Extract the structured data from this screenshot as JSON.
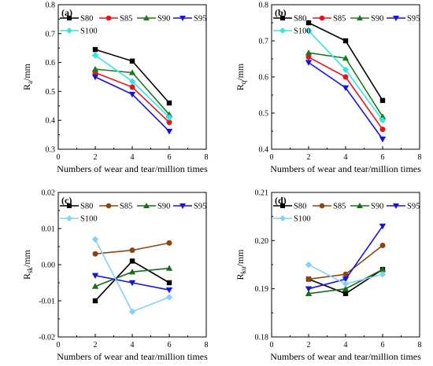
{
  "chart_data": [
    {
      "panel": "(a)",
      "type": "line",
      "x": [
        2,
        4,
        6
      ],
      "xlim": [
        0,
        8
      ],
      "ylim": [
        0.3,
        0.8
      ],
      "xticks": [
        "0",
        "2",
        "4",
        "6",
        "8"
      ],
      "yticks": [
        "0.3",
        "0.4",
        "0.5",
        "0.6",
        "0.7",
        "0.8"
      ],
      "ytick_values": [
        0.3,
        0.4,
        0.5,
        0.6,
        0.7,
        0.8
      ],
      "ylabel_main": "R",
      "ylabel_sub": "a",
      "ylabel_unit": "/mm",
      "xlabel": "Numbers of wear and tear/million times",
      "legend": "top",
      "series": [
        {
          "name": "S80",
          "color": "#000000",
          "marker": "square",
          "values": [
            0.645,
            0.605,
            0.46
          ]
        },
        {
          "name": "S85",
          "color": "#e8141c",
          "marker": "circle",
          "values": [
            0.565,
            0.515,
            0.393
          ]
        },
        {
          "name": "S90",
          "color": "#1c7a1c",
          "marker": "triangle-up",
          "values": [
            0.577,
            0.565,
            0.42
          ]
        },
        {
          "name": "S95",
          "color": "#1414e0",
          "marker": "triangle-down",
          "values": [
            0.55,
            0.49,
            0.362
          ]
        },
        {
          "name": "S100",
          "color": "#33e6e6",
          "marker": "diamond",
          "values": [
            0.625,
            0.535,
            0.41
          ]
        }
      ]
    },
    {
      "panel": "(b)",
      "type": "line",
      "x": [
        2,
        4,
        6
      ],
      "xlim": [
        0,
        8
      ],
      "ylim": [
        0.4,
        0.8
      ],
      "xticks": [
        "0",
        "2",
        "4",
        "6",
        "8"
      ],
      "yticks": [
        "0.4",
        "0.5",
        "0.6",
        "0.7",
        "0.8"
      ],
      "ytick_values": [
        0.4,
        0.5,
        0.6,
        0.7,
        0.8
      ],
      "ylabel_main": "R",
      "ylabel_sub": "q",
      "ylabel_unit": "/mm",
      "xlabel": "Numbers of wear and tear/million times",
      "legend": "top",
      "series": [
        {
          "name": "S80",
          "color": "#000000",
          "marker": "square",
          "values": [
            0.75,
            0.7,
            0.535
          ]
        },
        {
          "name": "S85",
          "color": "#e8141c",
          "marker": "circle",
          "values": [
            0.655,
            0.6,
            0.455
          ]
        },
        {
          "name": "S90",
          "color": "#1c7a1c",
          "marker": "triangle-up",
          "values": [
            0.667,
            0.652,
            0.49
          ]
        },
        {
          "name": "S95",
          "color": "#1414e0",
          "marker": "triangle-down",
          "values": [
            0.64,
            0.57,
            0.428
          ]
        },
        {
          "name": "S100",
          "color": "#33e6e6",
          "marker": "diamond",
          "values": [
            0.728,
            0.62,
            0.48
          ]
        }
      ]
    },
    {
      "panel": "(c)",
      "type": "line",
      "x": [
        2,
        4,
        6
      ],
      "xlim": [
        0,
        8
      ],
      "ylim": [
        -0.02,
        0.02
      ],
      "xticks": [
        "0",
        "2",
        "4",
        "6",
        "8"
      ],
      "yticks": [
        "-0.02",
        "-0.01",
        "0.00",
        "0.01",
        "0.02"
      ],
      "ytick_values": [
        -0.02,
        -0.01,
        0.0,
        0.01,
        0.02
      ],
      "ylabel_main": "R",
      "ylabel_sub": "sk",
      "ylabel_unit": "/mm",
      "xlabel": "Numbers of wear and tear/million times",
      "legend": "top",
      "series": [
        {
          "name": "S80",
          "color": "#000000",
          "marker": "square",
          "values": [
            -0.01,
            0.001,
            -0.005
          ]
        },
        {
          "name": "S85",
          "color": "#8b4513",
          "marker": "circle",
          "values": [
            0.003,
            0.004,
            0.006
          ]
        },
        {
          "name": "S90",
          "color": "#1c6b1c",
          "marker": "triangle-up",
          "values": [
            -0.006,
            -0.002,
            -0.001
          ]
        },
        {
          "name": "S95",
          "color": "#1414e0",
          "marker": "triangle-down",
          "values": [
            -0.003,
            -0.005,
            -0.007
          ]
        },
        {
          "name": "S100",
          "color": "#87cefa",
          "marker": "diamond",
          "values": [
            0.007,
            -0.013,
            -0.009
          ]
        }
      ]
    },
    {
      "panel": "(d)",
      "type": "line",
      "x": [
        2,
        4,
        6
      ],
      "xlim": [
        0,
        8
      ],
      "ylim": [
        0.18,
        0.21
      ],
      "xticks": [
        "0",
        "2",
        "4",
        "6",
        "8"
      ],
      "yticks": [
        "0.18",
        "0.19",
        "0.20",
        "0.21"
      ],
      "ytick_values": [
        0.18,
        0.19,
        0.2,
        0.21
      ],
      "ylabel_main": "R",
      "ylabel_sub": "ku",
      "ylabel_unit": "/mm",
      "xlabel": "Numbers of wear and tear/million times",
      "legend": "top",
      "series": [
        {
          "name": "S80",
          "color": "#000000",
          "marker": "square",
          "values": [
            0.192,
            0.189,
            0.194
          ]
        },
        {
          "name": "S85",
          "color": "#8b4513",
          "marker": "circle",
          "values": [
            0.192,
            0.193,
            0.199
          ]
        },
        {
          "name": "S90",
          "color": "#1c6b1c",
          "marker": "triangle-up",
          "values": [
            0.189,
            0.19,
            0.194
          ]
        },
        {
          "name": "S95",
          "color": "#1414e0",
          "marker": "triangle-down",
          "values": [
            0.19,
            0.192,
            0.203
          ]
        },
        {
          "name": "S100",
          "color": "#87cefa",
          "marker": "diamond",
          "values": [
            0.195,
            0.191,
            0.193
          ]
        }
      ]
    }
  ]
}
